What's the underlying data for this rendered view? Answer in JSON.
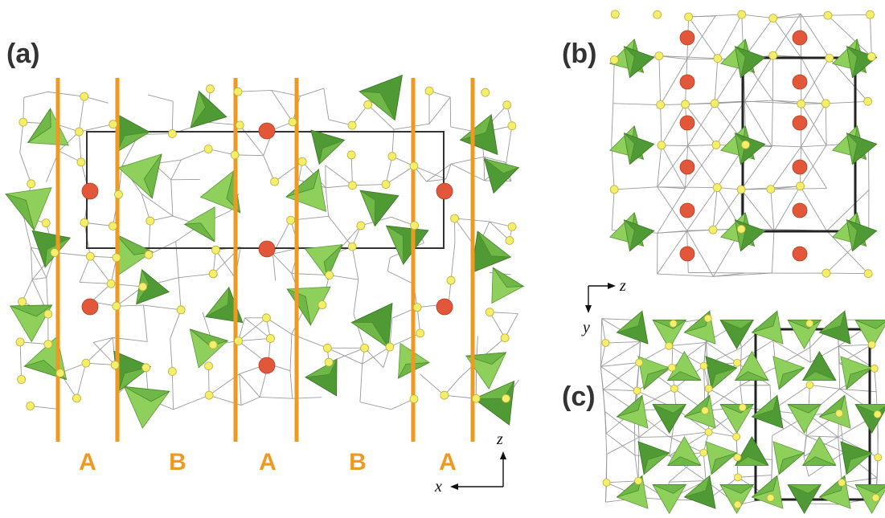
{
  "panels": {
    "a": {
      "label": "(a)"
    },
    "b": {
      "label": "(b)"
    },
    "c": {
      "label": "(c)"
    }
  },
  "regions": [
    "A",
    "B",
    "A",
    "B",
    "A"
  ],
  "axes_a": {
    "horizontal": "x",
    "vertical": "z"
  },
  "axes_bc": {
    "horizontal": "z",
    "vertical": "y"
  },
  "colors": {
    "tetra_light": "#8fcf5c",
    "tetra_dark": "#4f9a34",
    "atom_small": "#f5ee6a",
    "atom_large": "#e2573a",
    "layer_pillar": "#ee9a22"
  }
}
